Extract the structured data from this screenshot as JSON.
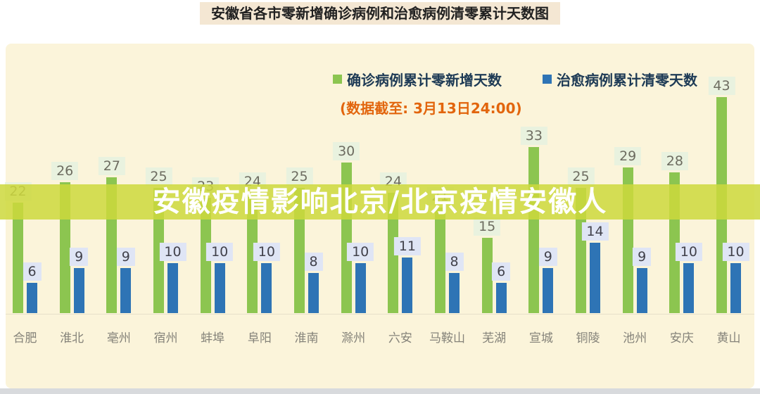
{
  "page": {
    "title": "安徽省各市零新增确诊病例和治愈病例清零累计天数图",
    "overlay_banner": "安徽疫情影响北京/北京疫情安徽人"
  },
  "chart_data": {
    "type": "bar",
    "title": "安徽省各市零新增确诊病例和治愈病例清零累计天数图",
    "note": "(数据截至: 3月13日24:00)",
    "categories": [
      "合肥",
      "淮北",
      "亳州",
      "宿州",
      "蚌埠",
      "阜阳",
      "淮南",
      "滁州",
      "六安",
      "马鞍山",
      "芜湖",
      "宣城",
      "铜陵",
      "池州",
      "安庆",
      "黄山"
    ],
    "series": [
      {
        "name": "确诊病例累计零新增天数",
        "color": "#8cc550",
        "values": [
          22,
          26,
          27,
          25,
          23,
          24,
          25,
          30,
          24,
          21,
          15,
          33,
          25,
          29,
          28,
          43
        ]
      },
      {
        "name": "治愈病例累计清零天数",
        "color": "#2e74b5",
        "values": [
          6,
          9,
          9,
          10,
          10,
          10,
          8,
          10,
          11,
          8,
          6,
          9,
          14,
          9,
          10,
          10
        ]
      }
    ],
    "ylim": [
      0,
      45
    ],
    "grid": false,
    "legend_position": "top",
    "data_labels": true,
    "note_hidden_label": "马鞍山 green value label obscured by overlay banner; value estimated from bar height"
  },
  "colors": {
    "page_background": "#ffffff",
    "panel_background": "#fbf4da",
    "title_box_background": "#f4e7d3",
    "banner_background": "#ccd83c",
    "banner_text": "#ffffff",
    "caption_orange": "#e2650d",
    "green_bar": "#8cc550",
    "blue_bar": "#2e74b5",
    "green_label_box": "#e9f2df",
    "blue_label_box": "#dfe5f5",
    "axis_label": "#85837a"
  }
}
